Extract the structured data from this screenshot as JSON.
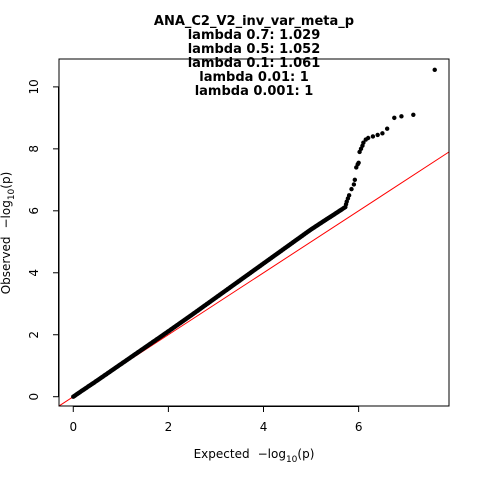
{
  "chart_data": {
    "type": "scatter",
    "title": "ANA_C2_V2_inv_var_meta_p",
    "subtitle_lines": [
      "lambda 0.7: 1.029",
      "lambda 0.5: 1.052",
      "lambda 0.1: 1.061",
      "lambda 0.01: 1",
      "lambda 0.001: 1"
    ],
    "xlabel": {
      "prefix": "Expected",
      "text": "−log",
      "sub": "10",
      "suffix": "(p)"
    },
    "ylabel": {
      "prefix": "Observed",
      "text": "−log",
      "sub": "10",
      "suffix": "(p)"
    },
    "xlim": [
      -0.3,
      7.9
    ],
    "ylim": [
      -0.3,
      10.9
    ],
    "xticks": [
      0,
      2,
      4,
      6
    ],
    "yticks": [
      0,
      2,
      4,
      6,
      8,
      10
    ],
    "grid": false,
    "reference_line": {
      "type": "y=x",
      "color": "#ff0000"
    },
    "point_color": "#000000",
    "series": [
      {
        "x": [
          0.0,
          0.2,
          0.5,
          1.0,
          1.5,
          2.0,
          2.5,
          3.0,
          3.5,
          4.0,
          4.5,
          5.0,
          5.2,
          5.4,
          5.5,
          5.6,
          5.65,
          5.7,
          5.72,
          5.75,
          5.8,
          5.85,
          5.9,
          5.92,
          5.95,
          5.98,
          6.0,
          6.02,
          6.05,
          6.08,
          6.1,
          6.15,
          6.2,
          6.3,
          6.4,
          6.5,
          6.6,
          6.75,
          6.9,
          7.15,
          7.6
        ],
        "y": [
          0.0,
          0.21,
          0.52,
          1.05,
          1.58,
          2.11,
          2.65,
          3.2,
          3.75,
          4.3,
          4.85,
          5.4,
          5.6,
          5.8,
          5.9,
          6.0,
          6.05,
          6.1,
          6.12,
          6.3,
          6.5,
          6.7,
          6.85,
          7.0,
          7.4,
          7.5,
          7.55,
          7.9,
          8.0,
          8.1,
          8.2,
          8.3,
          8.35,
          8.4,
          8.45,
          8.5,
          8.65,
          9.0,
          9.05,
          9.1,
          10.55
        ]
      }
    ]
  }
}
